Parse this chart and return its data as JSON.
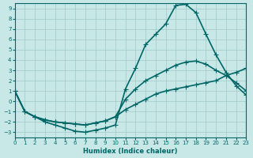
{
  "xlabel": "Humidex (Indice chaleur)",
  "ylabel": "",
  "xlim": [
    0,
    23
  ],
  "ylim": [
    -3.5,
    9.5
  ],
  "xticks": [
    0,
    1,
    2,
    3,
    4,
    5,
    6,
    7,
    8,
    9,
    10,
    11,
    12,
    13,
    14,
    15,
    16,
    17,
    18,
    19,
    20,
    21,
    22,
    23
  ],
  "yticks": [
    -3,
    -2,
    -1,
    0,
    1,
    2,
    3,
    4,
    5,
    6,
    7,
    8,
    9
  ],
  "background_color": "#c8e8e8",
  "grid_color": "#a0c8c8",
  "line_color": "#006666",
  "line1_x": [
    0,
    1,
    2,
    3,
    4,
    5,
    6,
    7,
    8,
    9,
    10,
    11,
    12,
    13,
    14,
    15,
    16,
    17,
    18,
    19,
    20,
    21,
    22,
    23
  ],
  "line1_y": [
    1,
    -1,
    -1.5,
    -2,
    -2.3,
    -2.6,
    -2.9,
    -3.0,
    -2.8,
    -2.6,
    -2.3,
    1.2,
    3.2,
    5.5,
    6.5,
    7.5,
    9.3,
    9.4,
    8.6,
    6.5,
    4.5,
    2.8,
    1.5,
    0.6
  ],
  "line2_x": [
    0,
    1,
    2,
    3,
    4,
    5,
    6,
    7,
    8,
    9,
    10,
    11,
    12,
    13,
    14,
    15,
    16,
    17,
    18,
    19,
    20,
    21,
    22,
    23
  ],
  "line2_y": [
    1,
    -1,
    -1.5,
    -1.8,
    -2.0,
    -2.1,
    -2.2,
    -2.3,
    -2.1,
    -1.9,
    -1.5,
    0.2,
    1.2,
    2.0,
    2.5,
    3.0,
    3.5,
    3.8,
    3.9,
    3.6,
    3.0,
    2.5,
    1.8,
    1.0
  ],
  "line3_x": [
    0,
    1,
    2,
    3,
    4,
    5,
    6,
    7,
    8,
    9,
    10,
    11,
    12,
    13,
    14,
    15,
    16,
    17,
    18,
    19,
    20,
    21,
    22,
    23
  ],
  "line3_y": [
    1,
    -1,
    -1.5,
    -1.8,
    -2.0,
    -2.1,
    -2.2,
    -2.3,
    -2.1,
    -1.9,
    -1.5,
    -0.8,
    -0.3,
    0.2,
    0.7,
    1.0,
    1.2,
    1.4,
    1.6,
    1.8,
    2.0,
    2.5,
    2.8,
    3.2
  ],
  "marker": "+",
  "markersize": 4,
  "linewidth": 1.2
}
